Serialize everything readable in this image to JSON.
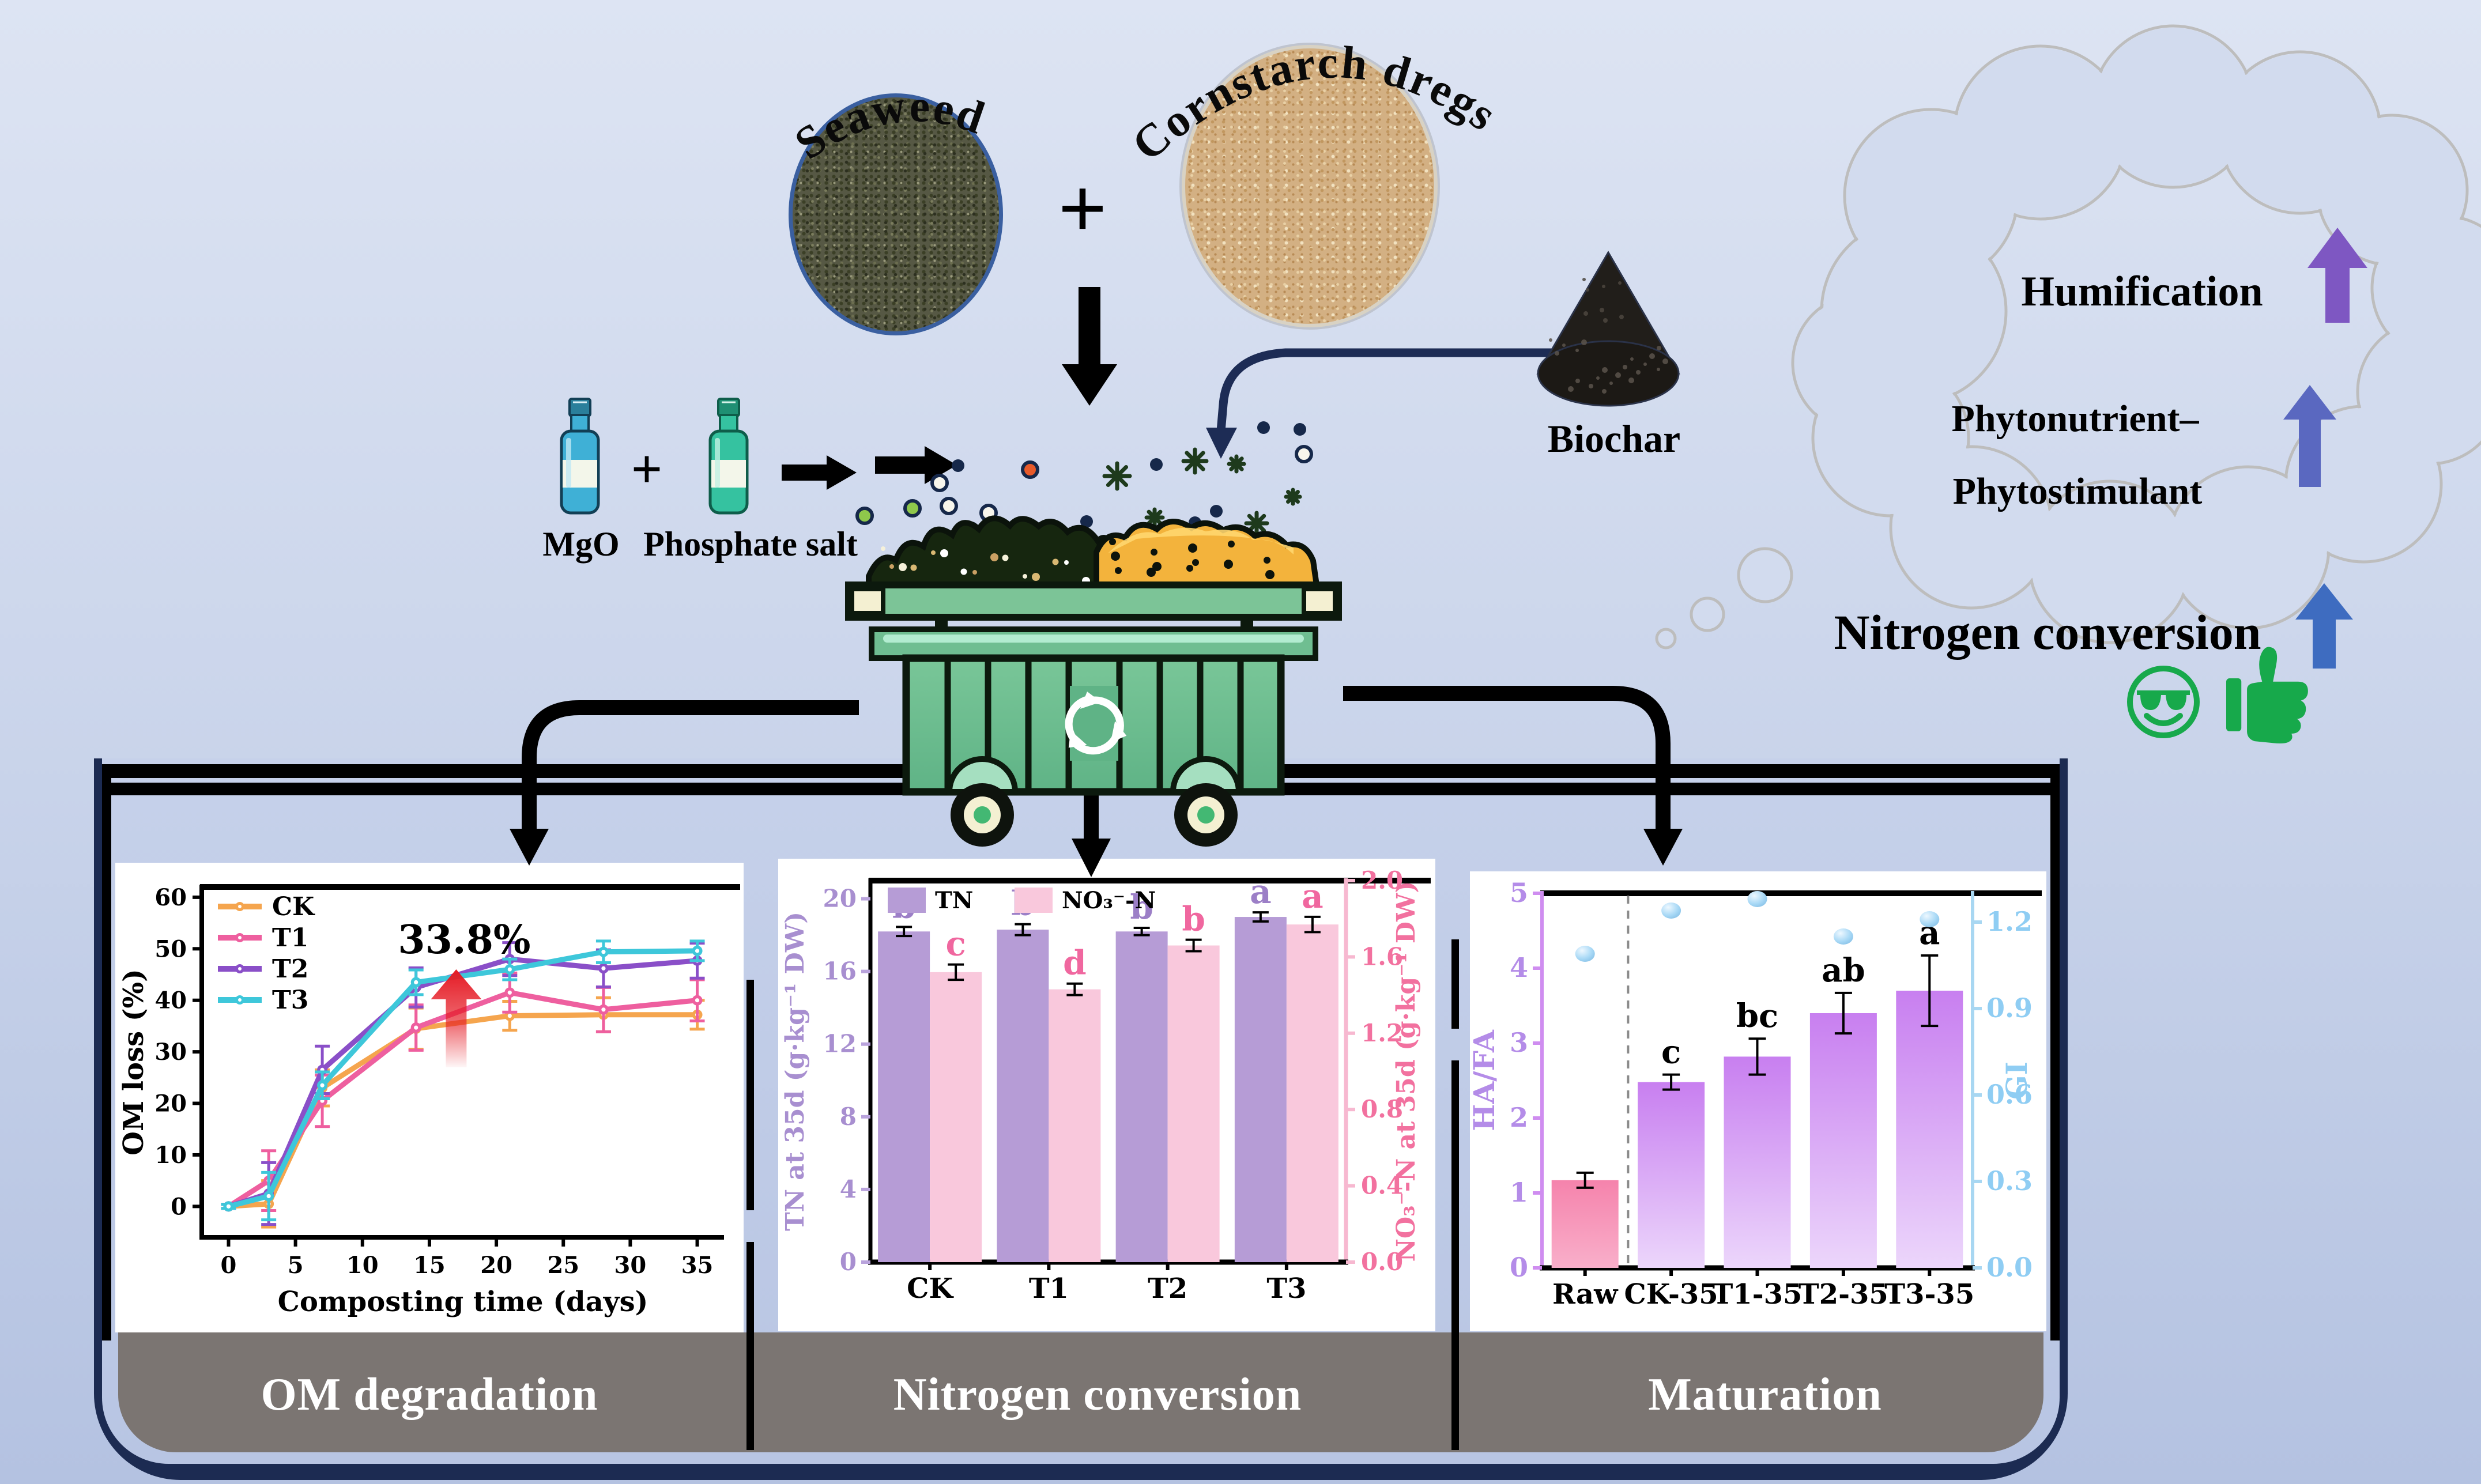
{
  "ingredients": {
    "seaweed_label": "Seaweed",
    "plus_sign": "+",
    "cornstarch_label": "Cornstarch dregs",
    "biochar_label": "Biochar",
    "mgo_label": "MgO",
    "additive_plus": "+",
    "phosphate_label": "Phosphate salt"
  },
  "cloud": {
    "humification": "Humification",
    "phyto_line1": "Phytonutrient–",
    "phyto_line2": "Phytostimulant",
    "nitrogen": "Nitrogen conversion",
    "arrow_colors": {
      "humification": "#7e57c2",
      "phyto": "#5a68c0",
      "nitrogen": "#3e6cc0"
    }
  },
  "icons": {
    "smiley": "smiley-sunglasses",
    "thumbs_up": "thumbs-up",
    "color": "#17a94b"
  },
  "band": {
    "om": "OM degradation",
    "nitrogen": "Nitrogen conversion",
    "maturation": "Maturation"
  },
  "chart_data": [
    {
      "type": "line",
      "title": "",
      "xlabel": "Composting time (days)",
      "ylabel": "OM loss (%)",
      "x": [
        0,
        3,
        7,
        14,
        21,
        28,
        35
      ],
      "xticks": [
        0,
        5,
        10,
        15,
        20,
        25,
        30,
        35
      ],
      "yticks": [
        0,
        10,
        20,
        30,
        40,
        50,
        60
      ],
      "xlim": [
        -2,
        37
      ],
      "ylim": [
        -6,
        62
      ],
      "grid": false,
      "legend_position": "top-left",
      "series": [
        {
          "name": "CK",
          "color": "#f5a54e",
          "values": [
            0,
            0.5,
            23,
            34.5,
            37,
            37.2,
            37.2
          ],
          "errors": [
            0.4,
            4.5,
            3.5,
            4,
            2.8,
            3.3,
            2.8
          ]
        },
        {
          "name": "T1",
          "color": "#ee5f9f",
          "values": [
            0,
            5,
            20.5,
            34.7,
            41.5,
            38.2,
            40
          ],
          "errors": [
            0.4,
            5.8,
            5,
            4.4,
            3.8,
            4.3,
            4
          ]
        },
        {
          "name": "T2",
          "color": "#8a4fc8",
          "values": [
            0,
            2.5,
            26.5,
            42.5,
            48,
            46.2,
            47.7
          ],
          "errors": [
            0.4,
            6,
            4.6,
            3.8,
            3.2,
            3.6,
            3.4
          ]
        },
        {
          "name": "T3",
          "color": "#3ec7da",
          "values": [
            0,
            2,
            23.5,
            43.5,
            46,
            49.4,
            49.6
          ],
          "errors": [
            0.4,
            4.6,
            2.6,
            2.4,
            2,
            2.1,
            1.9
          ]
        }
      ],
      "annotation": {
        "text": "33.8%",
        "x": 17,
        "arrow_from": 27,
        "arrow_to": 46,
        "color": "#e51a24"
      }
    },
    {
      "type": "grouped-bar",
      "categories": [
        "CK",
        "T1",
        "T2",
        "T3"
      ],
      "left_axis": {
        "label": "TN at 35d (g·kg⁻¹ DW)",
        "color": "#a88fd0",
        "tick_color": "#b9a3dc",
        "ticks": [
          0,
          4,
          8,
          12,
          16,
          20
        ],
        "max": 21
      },
      "right_axis": {
        "label": "NO₃⁻-N at 35d (g·kg⁻¹ DW)",
        "color": "#f2719f",
        "tick_color": "#f7b8d0",
        "ticks": [
          0,
          0.4,
          0.8,
          1.2,
          1.6,
          2
        ],
        "max": 2
      },
      "series": [
        {
          "name": "TN",
          "axis": "left",
          "color": "#b69cd6",
          "values": [
            18.2,
            18.3,
            18.2,
            19.0
          ],
          "errors": [
            0.25,
            0.3,
            0.2,
            0.25
          ],
          "letters": [
            "b",
            "b",
            "b",
            "a"
          ],
          "letter_color": "#9c7fc7"
        },
        {
          "name": "NO₃⁻-N",
          "axis": "right",
          "color": "#f9c8dc",
          "values": [
            1.52,
            1.43,
            1.66,
            1.77
          ],
          "errors": [
            0.04,
            0.03,
            0.03,
            0.04
          ],
          "letters": [
            "c",
            "d",
            "b",
            "a"
          ],
          "letter_color": "#f0679f"
        }
      ]
    },
    {
      "type": "bar-scatter",
      "categories": [
        "Raw",
        "CK-35",
        "T1-35",
        "T2-35",
        "T3-35"
      ],
      "left_axis": {
        "label": "HA/FA",
        "color": "#b48ce8",
        "spine": "#cf8df0",
        "ticks": [
          0,
          1,
          2,
          3,
          4,
          5
        ],
        "max": 5
      },
      "right_axis": {
        "label": "GI",
        "color": "#8fcdf3",
        "spine": "#a8d7f2",
        "ticks": [
          0,
          0.3,
          0.6,
          0.9,
          1.2
        ],
        "max": 1.3
      },
      "bars": {
        "name": "HA/FA",
        "values": [
          1.17,
          2.48,
          2.82,
          3.4,
          3.7
        ],
        "errors": [
          0.1,
          0.1,
          0.24,
          0.27,
          0.47
        ],
        "letters": [
          "",
          "c",
          "bc",
          "ab",
          "a"
        ]
      },
      "bar_colors": {
        "raw_top": "#f583ac",
        "raw_bottom": "#f9afca",
        "treat_top": "#c87ff0",
        "treat_bottom": "#ecd6fb"
      },
      "dots": {
        "name": "GI",
        "values": [
          1.09,
          1.24,
          1.28,
          1.15,
          1.21
        ],
        "color": "#a9d9f6"
      },
      "divider_after": 0
    }
  ]
}
